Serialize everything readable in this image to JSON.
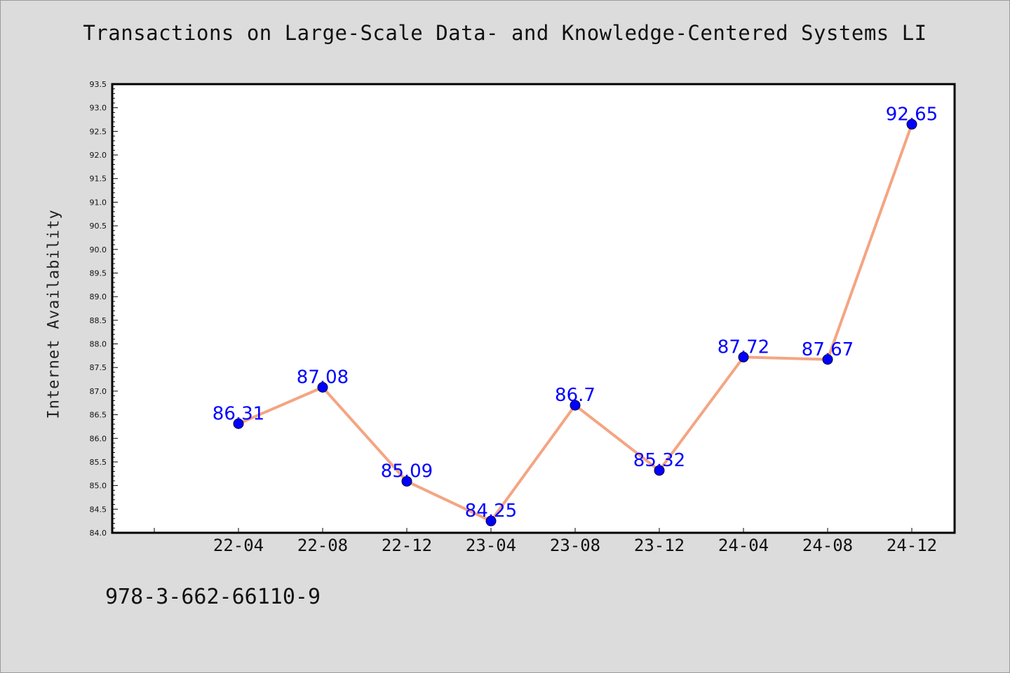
{
  "chart_data": {
    "type": "line",
    "title": "Transactions on Large-Scale Data- and Knowledge-Centered Systems LI",
    "xlabel": "",
    "ylabel": "Internet Availability",
    "categories": [
      "22-04",
      "22-08",
      "22-12",
      "23-04",
      "23-08",
      "23-12",
      "24-04",
      "24-08",
      "24-12"
    ],
    "series": [
      {
        "values": [
          86.31,
          87.08,
          85.09,
          84.25,
          86.7,
          85.32,
          87.72,
          87.67,
          92.65
        ],
        "line_color": "#f4a582",
        "marker_color": "#0000ff"
      }
    ],
    "data_labels": [
      "86.31",
      "87.08",
      "85.09",
      "84.25",
      "86.7",
      "85.32",
      "87.72",
      "87.67",
      "92.65"
    ],
    "ylim": [
      84.0,
      93.5
    ],
    "yticks": [
      "84.0",
      "84.5",
      "85.0",
      "85.5",
      "86.0",
      "86.5",
      "87.0",
      "87.5",
      "88.0",
      "88.5",
      "89.0",
      "89.5",
      "90.0",
      "90.5",
      "91.0",
      "91.5",
      "92.0",
      "92.5",
      "93.0",
      "93.5"
    ],
    "grid": false,
    "legend": "none"
  },
  "footnote": "978-3-662-66110-9",
  "colors": {
    "background": "#dcdcdc",
    "plot_area": "#ffffff",
    "line": "#f4a582",
    "marker": "#0000ff",
    "data_label": "#0000ff"
  }
}
